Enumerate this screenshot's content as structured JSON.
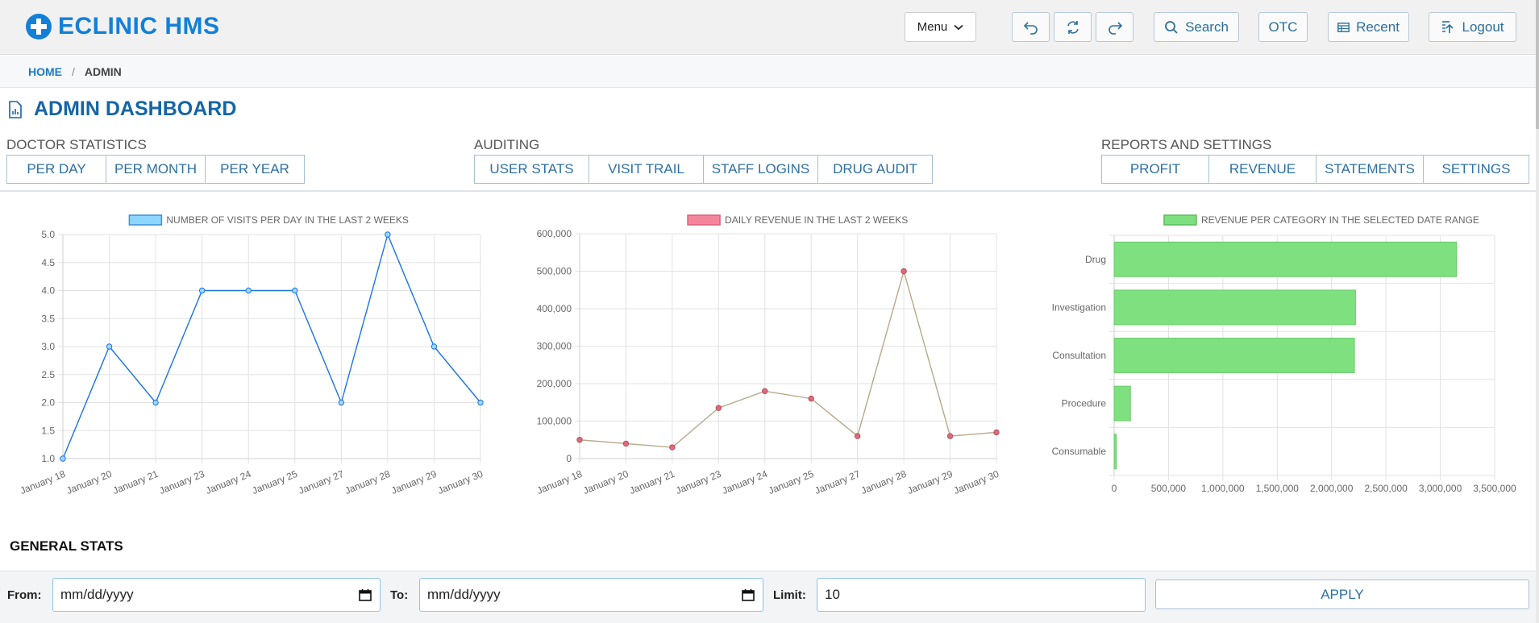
{
  "app": {
    "title": "ECLINIC HMS",
    "brand_color": "#1380d8"
  },
  "toolbar": {
    "menu_label": "Menu",
    "search_label": "Search",
    "otc_label": "OTC",
    "recent_label": "Recent",
    "logout_label": "Logout"
  },
  "breadcrumb": {
    "home": "HOME",
    "current": "ADMIN"
  },
  "page": {
    "title": "ADMIN DASHBOARD"
  },
  "groups": {
    "doctor": {
      "label": "DOCTOR STATISTICS",
      "buttons": [
        "PER DAY",
        "PER MONTH",
        "PER YEAR"
      ]
    },
    "auditing": {
      "label": "AUDITING",
      "buttons": [
        "USER STATS",
        "VISIT TRAIL",
        "STAFF LOGINS",
        "DRUG AUDIT"
      ]
    },
    "reports": {
      "label": "REPORTS AND SETTINGS",
      "buttons": [
        "PROFIT",
        "REVENUE",
        "STATEMENTS",
        "SETTINGS"
      ]
    }
  },
  "chart_data": [
    {
      "type": "line",
      "legend": "NUMBER OF VISITS PER DAY IN THE LAST 2 WEEKS",
      "x": [
        "January 18",
        "January 20",
        "January 21",
        "January 23",
        "January 24",
        "January 25",
        "January 27",
        "January 28",
        "January 29",
        "January 30"
      ],
      "values": [
        1,
        3,
        2,
        4,
        4,
        4,
        2,
        5,
        3,
        2
      ],
      "ylim": [
        1,
        5
      ],
      "yticks": [
        "5.0",
        "4.5",
        "4.0",
        "3.5",
        "3.0",
        "2.5",
        "2.0",
        "1.5",
        "1.0"
      ],
      "color": "#1a73e8",
      "legend_fill": "#8fd6ff",
      "grid": true
    },
    {
      "type": "line",
      "legend": "DAILY REVENUE IN THE LAST 2 WEEKS",
      "x": [
        "January 18",
        "January 20",
        "January 21",
        "January 23",
        "January 24",
        "January 25",
        "January 27",
        "January 28",
        "January 29",
        "January 30"
      ],
      "values": [
        50000,
        40000,
        30000,
        135000,
        180000,
        160000,
        60000,
        500000,
        60000,
        70000
      ],
      "ylim": [
        0,
        600000
      ],
      "yticks": [
        "600,000",
        "500,000",
        "400,000",
        "300,000",
        "200,000",
        "100,000",
        "0"
      ],
      "color": "#b7a98a",
      "point_color": "#e06a7a",
      "legend_fill": "#f5859d",
      "grid": true
    },
    {
      "type": "bar",
      "orientation": "horizontal",
      "legend": "REVENUE PER CATEGORY IN THE SELECTED DATE RANGE",
      "categories": [
        "Drug",
        "Investigation",
        "Consultation",
        "Procedure",
        "Consumable"
      ],
      "values": [
        3150000,
        2220000,
        2210000,
        150000,
        20000
      ],
      "xlim": [
        0,
        3500000
      ],
      "xticks": [
        "0",
        "500,000",
        "1,000,000",
        "1,500,000",
        "2,000,000",
        "2,500,000",
        "3,000,000",
        "3,500,000"
      ],
      "color": "#7ee07e",
      "grid": true
    }
  ],
  "general_stats": {
    "title": "GENERAL STATS",
    "from_label": "From:",
    "from_placeholder": "mm/dd/yyyy",
    "to_label": "To:",
    "to_placeholder": "mm/dd/yyyy",
    "limit_label": "Limit:",
    "limit_value": "10",
    "apply_label": "APPLY"
  }
}
